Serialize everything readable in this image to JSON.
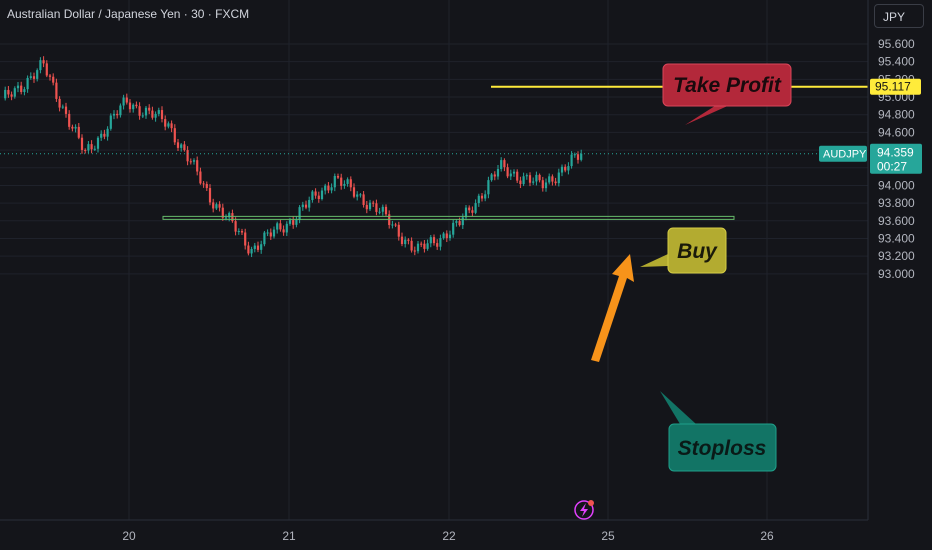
{
  "header": {
    "title": "Australian Dollar / Japanese Yen · 30 · FXCM",
    "currency_button": "JPY"
  },
  "colors": {
    "up": "#26a69a",
    "down": "#ef5350",
    "take_profit_line": "#ffeb3b",
    "stoploss_zone": "#4caf50",
    "arrow": "#f7931a",
    "background": "#14151a"
  },
  "annotations": {
    "take_profit": "Take Profit",
    "buy": "Buy",
    "stoploss": "Stoploss"
  },
  "price_badges": {
    "take_profit_price": "95.117",
    "symbol": "AUDJPY",
    "last_price": "94.359",
    "countdown": "00:27"
  },
  "chart_data": {
    "type": "candlestick",
    "title": "Australian Dollar / Japanese Yen · 30 · FXCM",
    "y_ticks": [
      "95.600",
      "95.400",
      "95.200",
      "95.000",
      "94.800",
      "94.600",
      "94.400",
      "94.200",
      "94.000",
      "93.800",
      "93.600",
      "93.400",
      "93.200",
      "93.000"
    ],
    "x_ticks": [
      "20",
      "21",
      "22",
      "25",
      "26"
    ],
    "ylim": [
      92.93,
      95.72
    ],
    "grid": true,
    "last_price": 94.359,
    "take_profit_level": 95.117,
    "stoploss_zone": [
      93.62,
      93.65
    ],
    "key_points": [
      {
        "time": "19 (early)",
        "price": 94.95
      },
      {
        "time": "19 (peak)",
        "price": 95.35
      },
      {
        "time": "19 (dip)",
        "price": 94.35
      },
      {
        "time": "20 (pre)",
        "price": 94.95
      },
      {
        "time": "20",
        "price": 94.7
      },
      {
        "time": "20 (drop)",
        "price": 93.88
      },
      {
        "time": "20 (late)",
        "price": 93.28
      },
      {
        "time": "21",
        "price": 93.62
      },
      {
        "time": "21 (mid)",
        "price": 94.08
      },
      {
        "time": "21 (late)",
        "price": 93.75
      },
      {
        "time": "22 (early)",
        "price": 93.25
      },
      {
        "time": "22",
        "price": 93.55
      },
      {
        "time": "22 (rally)",
        "price": 94.2
      },
      {
        "time": "22 (late)",
        "price": 94.0
      },
      {
        "time": "22 (end)",
        "price": 94.359
      }
    ]
  }
}
